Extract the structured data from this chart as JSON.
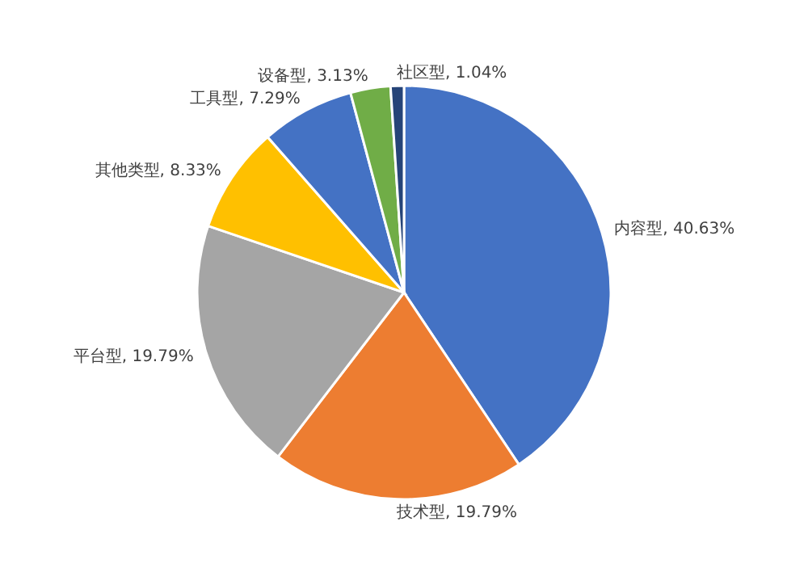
{
  "chart_data": {
    "type": "pie",
    "categories": [
      "内容型",
      "技术型",
      "平台型",
      "其他类型",
      "工具型",
      "设备型",
      "社区型"
    ],
    "values": [
      40.63,
      19.79,
      19.79,
      8.33,
      7.29,
      3.13,
      1.04
    ],
    "value_labels": [
      "40.63%",
      "19.79%",
      "19.79%",
      "8.33%",
      "7.29%",
      "3.13%",
      "1.04%"
    ],
    "colors": [
      "#4472c4",
      "#ed7d31",
      "#a5a5a5",
      "#ffc000",
      "#4472c4",
      "#70ad47",
      "#264478"
    ],
    "legend": false
  }
}
